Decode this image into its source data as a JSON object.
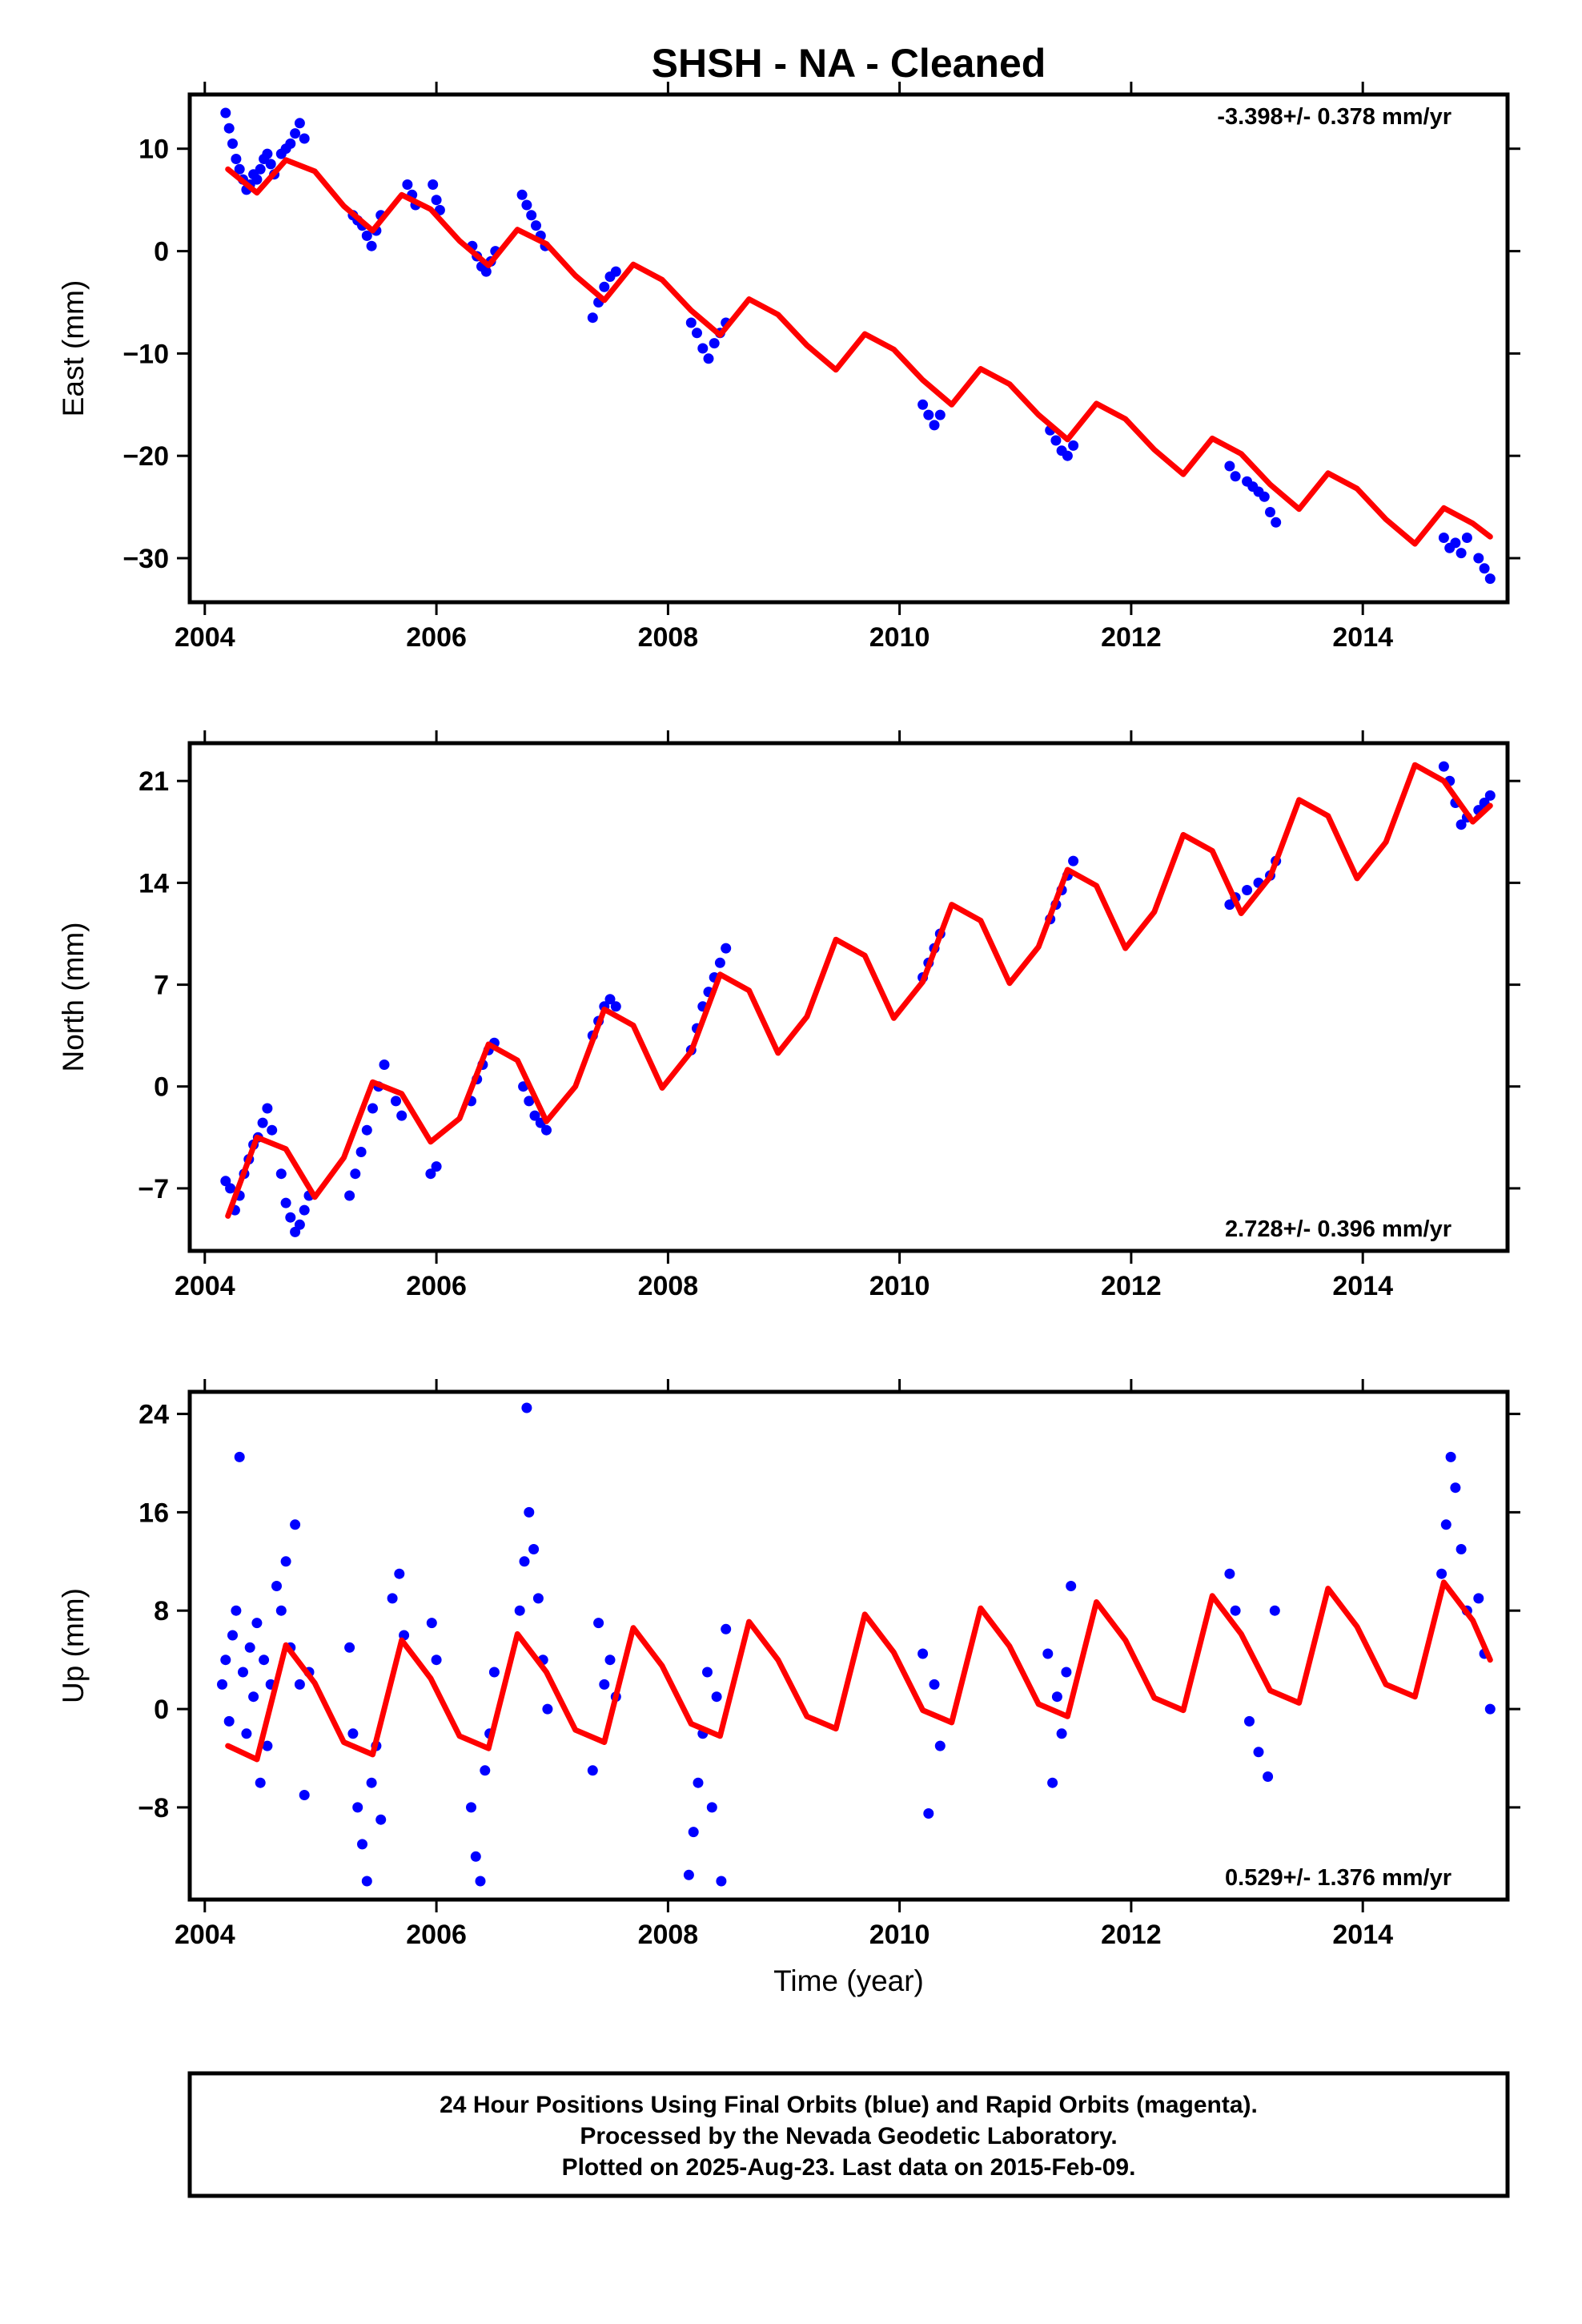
{
  "title": "SHSH  - NA - Cleaned",
  "xlabel": "Time (year)",
  "footer": {
    "line1": "24 Hour Positions Using Final Orbits (blue) and Rapid Orbits (magenta).",
    "line2": "Processed by the Nevada Geodetic Laboratory.",
    "line3": "Plotted on 2025-Aug-23. Last data on 2015-Feb-09."
  },
  "colors": {
    "data_points": "#0000ff",
    "model_curve": "#ff0000",
    "frame": "#000000"
  },
  "chart_data": [
    {
      "type": "scatter",
      "title": "SHSH  - NA - Cleaned",
      "ylabel": "East (mm)",
      "xlabel": "",
      "xlim": [
        2003.87,
        2015.25
      ],
      "ylim": [
        -34.3,
        15.3
      ],
      "x_ticks": [
        "2004",
        "2006",
        "2008",
        "2010",
        "2012",
        "2014"
      ],
      "x_tick_values": [
        2004,
        2006,
        2008,
        2010,
        2012,
        2014
      ],
      "y_ticks": [
        "10",
        "0",
        "−10",
        "−20",
        "−30"
      ],
      "y_tick_values": [
        10,
        0,
        -10,
        -20,
        -30
      ],
      "rate_label": "-3.398+/- 0.378 mm/yr",
      "rate_position": "top-right",
      "series": [
        {
          "kind": "observations",
          "color": "#0000ff",
          "x": [
            2004.18,
            2004.21,
            2004.24,
            2004.27,
            2004.3,
            2004.33,
            2004.36,
            2004.39,
            2004.42,
            2004.45,
            2004.48,
            2004.51,
            2004.54,
            2004.57,
            2004.6,
            2004.66,
            2004.7,
            2004.74,
            2004.78,
            2004.82,
            2004.86,
            2005.28,
            2005.32,
            2005.36,
            2005.4,
            2005.44,
            2005.48,
            2005.52,
            2005.75,
            2005.79,
            2005.82,
            2005.97,
            2006.0,
            2006.03,
            2006.31,
            2006.35,
            2006.39,
            2006.43,
            2006.47,
            2006.51,
            2006.74,
            2006.78,
            2006.82,
            2006.86,
            2006.9,
            2006.94,
            2007.35,
            2007.4,
            2007.45,
            2007.5,
            2007.55,
            2008.2,
            2008.25,
            2008.3,
            2008.35,
            2008.4,
            2008.45,
            2008.5,
            2010.2,
            2010.25,
            2010.3,
            2010.35,
            2011.3,
            2011.35,
            2011.4,
            2011.45,
            2011.5,
            2012.85,
            2012.9,
            2013.0,
            2013.05,
            2013.1,
            2013.15,
            2013.2,
            2013.25,
            2014.7,
            2014.75,
            2014.8,
            2014.85,
            2014.9,
            2015.0,
            2015.05,
            2015.1
          ],
          "y": [
            13.5,
            12.0,
            10.5,
            9.0,
            8.0,
            7.0,
            6.0,
            6.5,
            7.5,
            7.0,
            8.0,
            9.0,
            9.5,
            8.5,
            7.5,
            9.5,
            10.0,
            10.5,
            11.5,
            12.5,
            11.0,
            3.5,
            3.0,
            2.5,
            1.5,
            0.5,
            2.0,
            3.5,
            6.5,
            5.5,
            4.5,
            6.5,
            5.0,
            4.0,
            0.5,
            -0.5,
            -1.5,
            -2.0,
            -1.0,
            0.0,
            5.5,
            4.5,
            3.5,
            2.5,
            1.5,
            0.5,
            -6.5,
            -5.0,
            -3.5,
            -2.5,
            -2.0,
            -7.0,
            -8.0,
            -9.5,
            -10.5,
            -9.0,
            -8.0,
            -7.0,
            -15.0,
            -16.0,
            -17.0,
            -16.0,
            -17.5,
            -18.5,
            -19.5,
            -20.0,
            -19.0,
            -21.0,
            -22.0,
            -22.5,
            -23.0,
            -23.5,
            -24.0,
            -25.5,
            -26.5,
            -28.0,
            -29.0,
            -28.5,
            -29.5,
            -28.0,
            -30.0,
            -31.0,
            -32.0
          ]
        },
        {
          "kind": "model",
          "color": "#ff0000",
          "x": [
            2004.2,
            2004.45,
            2004.7,
            2004.95,
            2005.2,
            2005.45,
            2005.7,
            2005.95,
            2006.2,
            2006.45,
            2006.7,
            2006.95,
            2007.2,
            2007.45,
            2007.7,
            2007.95,
            2008.2,
            2008.45,
            2008.7,
            2008.95,
            2009.2,
            2009.45,
            2009.7,
            2009.95,
            2010.2,
            2010.45,
            2010.7,
            2010.95,
            2011.2,
            2011.45,
            2011.7,
            2011.95,
            2012.2,
            2012.45,
            2012.7,
            2012.95,
            2013.2,
            2013.45,
            2013.7,
            2013.95,
            2014.2,
            2014.45,
            2014.7,
            2014.95,
            2015.1
          ],
          "y": [
            8.0,
            5.7,
            8.9,
            7.8,
            4.4,
            2.0,
            5.5,
            4.1,
            1.0,
            -1.4,
            2.1,
            0.7,
            -2.4,
            -4.8,
            -1.3,
            -2.8,
            -5.8,
            -8.2,
            -4.7,
            -6.2,
            -9.2,
            -11.6,
            -8.1,
            -9.6,
            -12.6,
            -15.0,
            -11.5,
            -13.0,
            -16.0,
            -18.4,
            -14.9,
            -16.4,
            -19.4,
            -21.8,
            -18.3,
            -19.8,
            -22.8,
            -25.2,
            -21.7,
            -23.2,
            -26.2,
            -28.6,
            -25.1,
            -26.6,
            -27.9
          ]
        }
      ]
    },
    {
      "type": "scatter",
      "title": "",
      "ylabel": "North (mm)",
      "xlabel": "",
      "xlim": [
        2003.87,
        2015.25
      ],
      "ylim": [
        -11.3,
        23.6
      ],
      "x_ticks": [
        "2004",
        "2006",
        "2008",
        "2010",
        "2012",
        "2014"
      ],
      "x_tick_values": [
        2004,
        2006,
        2008,
        2010,
        2012,
        2014
      ],
      "y_ticks": [
        "21",
        "14",
        "7",
        "0",
        "−7"
      ],
      "y_tick_values": [
        21,
        14,
        7,
        0,
        -7
      ],
      "rate_label": "2.728+/- 0.396 mm/yr",
      "rate_position": "bottom-right",
      "series": [
        {
          "kind": "observations",
          "color": "#0000ff",
          "x": [
            2004.18,
            2004.22,
            2004.26,
            2004.3,
            2004.34,
            2004.38,
            2004.42,
            2004.46,
            2004.5,
            2004.54,
            2004.58,
            2004.66,
            2004.7,
            2004.74,
            2004.78,
            2004.82,
            2004.86,
            2004.9,
            2005.25,
            2005.3,
            2005.35,
            2005.4,
            2005.45,
            2005.5,
            2005.55,
            2005.65,
            2005.7,
            2005.95,
            2006.0,
            2006.3,
            2006.35,
            2006.4,
            2006.45,
            2006.5,
            2006.75,
            2006.8,
            2006.85,
            2006.9,
            2006.95,
            2007.35,
            2007.4,
            2007.45,
            2007.5,
            2007.55,
            2008.2,
            2008.25,
            2008.3,
            2008.35,
            2008.4,
            2008.45,
            2008.5,
            2010.2,
            2010.25,
            2010.3,
            2010.35,
            2011.3,
            2011.35,
            2011.4,
            2011.45,
            2011.5,
            2012.85,
            2012.9,
            2013.0,
            2013.1,
            2013.2,
            2013.25,
            2014.7,
            2014.75,
            2014.8,
            2014.85,
            2014.9,
            2015.0,
            2015.05,
            2015.1
          ],
          "y": [
            -6.5,
            -7.0,
            -8.5,
            -7.5,
            -6.0,
            -5.0,
            -4.0,
            -3.5,
            -2.5,
            -1.5,
            -3.0,
            -6.0,
            -8.0,
            -9.0,
            -10.0,
            -9.5,
            -8.5,
            -7.5,
            -7.5,
            -6.0,
            -4.5,
            -3.0,
            -1.5,
            0.0,
            1.5,
            -1.0,
            -2.0,
            -6.0,
            -5.5,
            -1.0,
            0.5,
            1.5,
            2.5,
            3.0,
            0.0,
            -1.0,
            -2.0,
            -2.5,
            -3.0,
            3.5,
            4.5,
            5.5,
            6.0,
            5.5,
            2.5,
            4.0,
            5.5,
            6.5,
            7.5,
            8.5,
            9.5,
            7.5,
            8.5,
            9.5,
            10.5,
            11.5,
            12.5,
            13.5,
            14.5,
            15.5,
            12.5,
            13.0,
            13.5,
            14.0,
            14.5,
            15.5,
            22.0,
            21.0,
            19.5,
            18.0,
            18.5,
            19.0,
            19.5,
            20.0
          ]
        },
        {
          "kind": "model",
          "color": "#ff0000",
          "x": [
            2004.2,
            2004.45,
            2004.7,
            2004.95,
            2005.2,
            2005.45,
            2005.7,
            2005.95,
            2006.2,
            2006.45,
            2006.7,
            2006.95,
            2007.2,
            2007.45,
            2007.7,
            2007.95,
            2008.2,
            2008.45,
            2008.7,
            2008.95,
            2009.2,
            2009.45,
            2009.7,
            2009.95,
            2010.2,
            2010.45,
            2010.7,
            2010.95,
            2011.2,
            2011.45,
            2011.7,
            2011.95,
            2012.2,
            2012.45,
            2012.7,
            2012.95,
            2013.2,
            2013.45,
            2013.7,
            2013.95,
            2014.2,
            2014.45,
            2014.7,
            2014.95,
            2015.1
          ],
          "y": [
            -8.9,
            -3.5,
            -4.3,
            -7.6,
            -4.9,
            0.3,
            -0.5,
            -3.8,
            -2.2,
            2.9,
            1.8,
            -2.4,
            0.0,
            5.3,
            4.2,
            -0.1,
            2.4,
            7.7,
            6.6,
            2.3,
            4.8,
            10.1,
            9.0,
            4.7,
            7.2,
            12.5,
            11.4,
            7.1,
            9.6,
            14.9,
            13.8,
            9.5,
            12.0,
            17.3,
            16.2,
            11.9,
            14.4,
            19.7,
            18.6,
            14.3,
            16.8,
            22.1,
            21.0,
            18.2,
            19.3
          ]
        }
      ]
    },
    {
      "type": "scatter",
      "title": "",
      "ylabel": "Up (mm)",
      "xlabel": "Time (year)",
      "xlim": [
        2003.87,
        2015.25
      ],
      "ylim": [
        -15.5,
        25.8
      ],
      "x_ticks": [
        "2004",
        "2006",
        "2008",
        "2010",
        "2012",
        "2014"
      ],
      "x_tick_values": [
        2004,
        2006,
        2008,
        2010,
        2012,
        2014
      ],
      "y_ticks": [
        "24",
        "16",
        "8",
        "0",
        "−8"
      ],
      "y_tick_values": [
        24,
        16,
        8,
        0,
        -8
      ],
      "rate_label": "0.529+/- 1.376 mm/yr",
      "rate_position": "bottom-right",
      "series": [
        {
          "kind": "observations",
          "color": "#0000ff",
          "x": [
            2004.15,
            2004.18,
            2004.21,
            2004.24,
            2004.27,
            2004.3,
            2004.33,
            2004.36,
            2004.39,
            2004.42,
            2004.45,
            2004.48,
            2004.51,
            2004.54,
            2004.57,
            2004.62,
            2004.66,
            2004.7,
            2004.74,
            2004.78,
            2004.82,
            2004.86,
            2004.9,
            2005.25,
            2005.28,
            2005.32,
            2005.36,
            2005.4,
            2005.44,
            2005.48,
            2005.52,
            2005.62,
            2005.68,
            2005.72,
            2005.96,
            2006.0,
            2006.3,
            2006.34,
            2006.38,
            2006.42,
            2006.46,
            2006.5,
            2006.72,
            2006.76,
            2006.78,
            2006.8,
            2006.84,
            2006.88,
            2006.92,
            2006.96,
            2007.35,
            2007.4,
            2007.45,
            2007.5,
            2007.55,
            2008.18,
            2008.22,
            2008.26,
            2008.3,
            2008.34,
            2008.38,
            2008.42,
            2008.46,
            2008.5,
            2010.2,
            2010.25,
            2010.3,
            2010.35,
            2011.28,
            2011.32,
            2011.36,
            2011.4,
            2011.44,
            2011.48,
            2012.85,
            2012.9,
            2013.02,
            2013.1,
            2013.18,
            2013.24,
            2014.68,
            2014.72,
            2014.76,
            2014.8,
            2014.85,
            2014.9,
            2015.0,
            2015.05,
            2015.1
          ],
          "y": [
            2.0,
            4.0,
            -1.0,
            6.0,
            8.0,
            20.5,
            3.0,
            -2.0,
            5.0,
            1.0,
            7.0,
            -6.0,
            4.0,
            -3.0,
            2.0,
            10.0,
            8.0,
            12.0,
            5.0,
            15.0,
            2.0,
            -7.0,
            3.0,
            5.0,
            -2.0,
            -8.0,
            -11.0,
            -14.0,
            -6.0,
            -3.0,
            -9.0,
            9.0,
            11.0,
            6.0,
            7.0,
            4.0,
            -8.0,
            -12.0,
            -14.0,
            -5.0,
            -2.0,
            3.0,
            8.0,
            12.0,
            24.5,
            16.0,
            13.0,
            9.0,
            4.0,
            0.0,
            -5.0,
            7.0,
            2.0,
            4.0,
            1.0,
            -13.5,
            -10.0,
            -6.0,
            -2.0,
            3.0,
            -8.0,
            1.0,
            -14.0,
            6.5,
            4.5,
            -8.5,
            2.0,
            -3.0,
            4.5,
            -6.0,
            1.0,
            -2.0,
            3.0,
            10.0,
            11.0,
            8.0,
            -1.0,
            -3.5,
            -5.5,
            8.0,
            11.0,
            15.0,
            20.5,
            18.0,
            13.0,
            8.0,
            9.0,
            4.5,
            0.0
          ]
        },
        {
          "kind": "model",
          "color": "#ff0000",
          "x": [
            2004.2,
            2004.45,
            2004.7,
            2004.95,
            2005.2,
            2005.45,
            2005.7,
            2005.95,
            2006.2,
            2006.45,
            2006.7,
            2006.95,
            2007.2,
            2007.45,
            2007.7,
            2007.95,
            2008.2,
            2008.45,
            2008.7,
            2008.95,
            2009.2,
            2009.45,
            2009.7,
            2009.95,
            2010.2,
            2010.45,
            2010.7,
            2010.95,
            2011.2,
            2011.45,
            2011.7,
            2011.95,
            2012.2,
            2012.45,
            2012.7,
            2012.95,
            2013.2,
            2013.45,
            2013.7,
            2013.95,
            2014.2,
            2014.45,
            2014.7,
            2014.95,
            2015.1
          ],
          "y": [
            -3.0,
            -4.1,
            5.2,
            2.1,
            -2.7,
            -3.7,
            5.6,
            2.5,
            -2.2,
            -3.2,
            6.1,
            3.0,
            -1.7,
            -2.7,
            6.6,
            3.5,
            -1.2,
            -2.2,
            7.1,
            4.0,
            -0.6,
            -1.6,
            7.7,
            4.6,
            -0.1,
            -1.1,
            8.2,
            5.1,
            0.4,
            -0.6,
            8.7,
            5.6,
            0.9,
            -0.1,
            9.2,
            6.1,
            1.5,
            0.5,
            9.8,
            6.7,
            2.0,
            1.0,
            10.3,
            7.2,
            4.0
          ]
        }
      ]
    }
  ]
}
